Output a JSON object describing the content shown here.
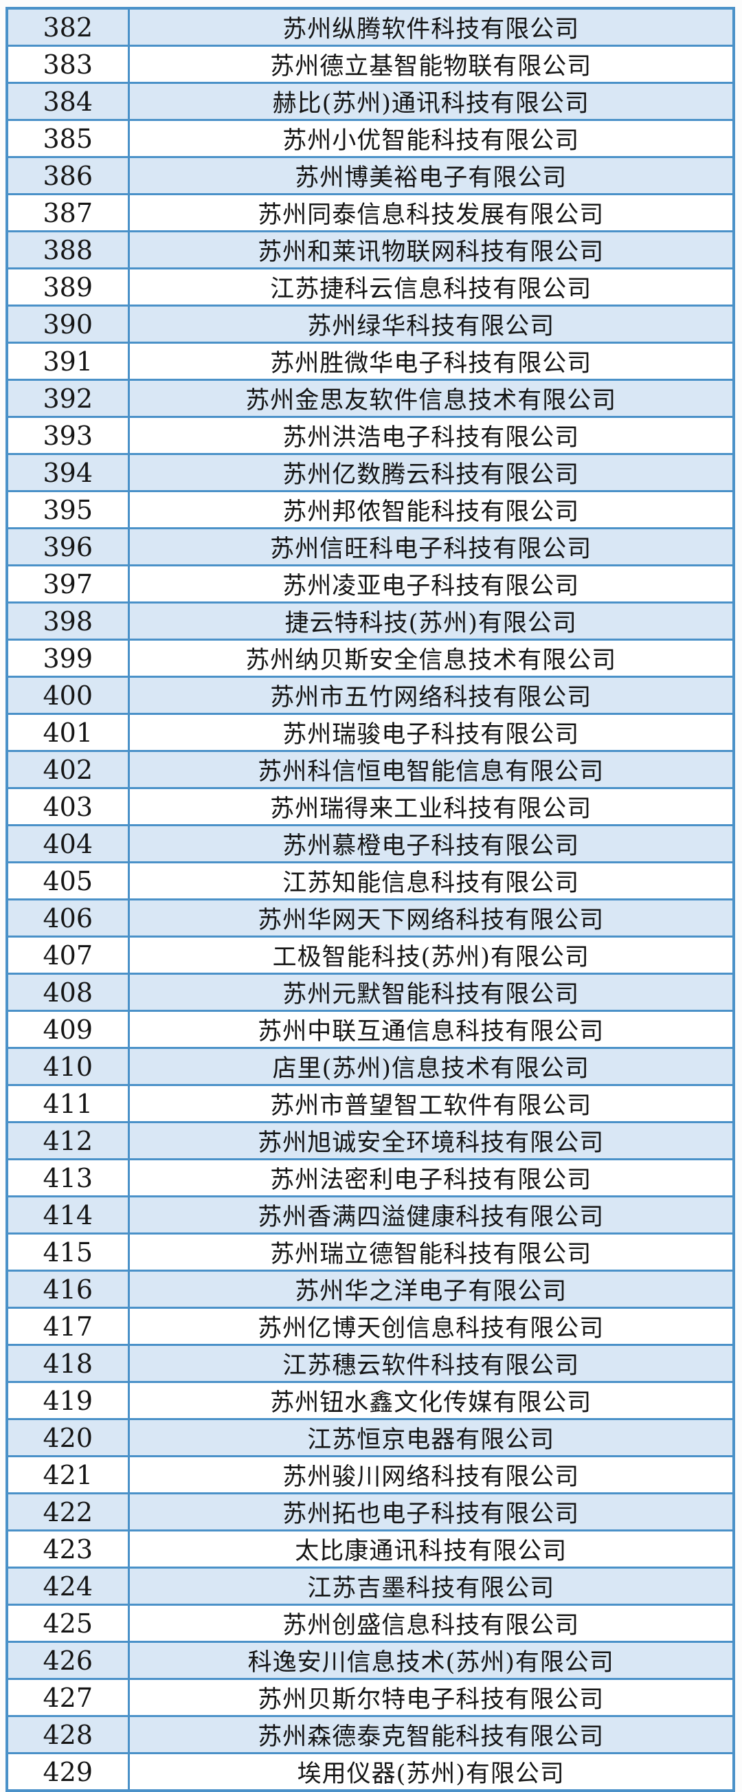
{
  "colors": {
    "border": "#4a91c8",
    "row_fill": "#d9e7f5",
    "background": "#fcfcfc",
    "text": "#151515"
  },
  "table": {
    "rows": [
      {
        "no": "382",
        "company": "苏州纵腾软件科技有限公司"
      },
      {
        "no": "383",
        "company": "苏州德立基智能物联有限公司"
      },
      {
        "no": "384",
        "company": "赫比(苏州)通讯科技有限公司"
      },
      {
        "no": "385",
        "company": "苏州小优智能科技有限公司"
      },
      {
        "no": "386",
        "company": "苏州博美裕电子有限公司"
      },
      {
        "no": "387",
        "company": "苏州同泰信息科技发展有限公司"
      },
      {
        "no": "388",
        "company": "苏州和莱讯物联网科技有限公司"
      },
      {
        "no": "389",
        "company": "江苏捷科云信息科技有限公司"
      },
      {
        "no": "390",
        "company": "苏州绿华科技有限公司"
      },
      {
        "no": "391",
        "company": "苏州胜微华电子科技有限公司"
      },
      {
        "no": "392",
        "company": "苏州金思友软件信息技术有限公司"
      },
      {
        "no": "393",
        "company": "苏州洪浩电子科技有限公司"
      },
      {
        "no": "394",
        "company": "苏州亿数腾云科技有限公司"
      },
      {
        "no": "395",
        "company": "苏州邦侬智能科技有限公司"
      },
      {
        "no": "396",
        "company": "苏州信旺科电子科技有限公司"
      },
      {
        "no": "397",
        "company": "苏州凌亚电子科技有限公司"
      },
      {
        "no": "398",
        "company": "捷云特科技(苏州)有限公司"
      },
      {
        "no": "399",
        "company": "苏州纳贝斯安全信息技术有限公司"
      },
      {
        "no": "400",
        "company": "苏州市五竹网络科技有限公司"
      },
      {
        "no": "401",
        "company": "苏州瑞骏电子科技有限公司"
      },
      {
        "no": "402",
        "company": "苏州科信恒电智能信息有限公司"
      },
      {
        "no": "403",
        "company": "苏州瑞得来工业科技有限公司"
      },
      {
        "no": "404",
        "company": "苏州慕橙电子科技有限公司"
      },
      {
        "no": "405",
        "company": "江苏知能信息科技有限公司"
      },
      {
        "no": "406",
        "company": "苏州华网天下网络科技有限公司"
      },
      {
        "no": "407",
        "company": "工极智能科技(苏州)有限公司"
      },
      {
        "no": "408",
        "company": "苏州元默智能科技有限公司"
      },
      {
        "no": "409",
        "company": "苏州中联互通信息科技有限公司"
      },
      {
        "no": "410",
        "company": "店里(苏州)信息技术有限公司"
      },
      {
        "no": "411",
        "company": "苏州市普望智工软件有限公司"
      },
      {
        "no": "412",
        "company": "苏州旭诚安全环境科技有限公司"
      },
      {
        "no": "413",
        "company": "苏州法密利电子科技有限公司"
      },
      {
        "no": "414",
        "company": "苏州香满四溢健康科技有限公司"
      },
      {
        "no": "415",
        "company": "苏州瑞立德智能科技有限公司"
      },
      {
        "no": "416",
        "company": "苏州华之洋电子有限公司"
      },
      {
        "no": "417",
        "company": "苏州亿博天创信息科技有限公司"
      },
      {
        "no": "418",
        "company": "江苏穗云软件科技有限公司"
      },
      {
        "no": "419",
        "company": "苏州钮水鑫文化传媒有限公司"
      },
      {
        "no": "420",
        "company": "江苏恒京电器有限公司"
      },
      {
        "no": "421",
        "company": "苏州骏川网络科技有限公司"
      },
      {
        "no": "422",
        "company": "苏州拓也电子科技有限公司"
      },
      {
        "no": "423",
        "company": "太比康通讯科技有限公司"
      },
      {
        "no": "424",
        "company": "江苏吉墨科技有限公司"
      },
      {
        "no": "425",
        "company": "苏州创盛信息科技有限公司"
      },
      {
        "no": "426",
        "company": "科逸安川信息技术(苏州)有限公司"
      },
      {
        "no": "427",
        "company": "苏州贝斯尔特电子科技有限公司"
      },
      {
        "no": "428",
        "company": "苏州森德泰克智能科技有限公司"
      },
      {
        "no": "429",
        "company": "埃用仪器(苏州)有限公司"
      }
    ]
  }
}
